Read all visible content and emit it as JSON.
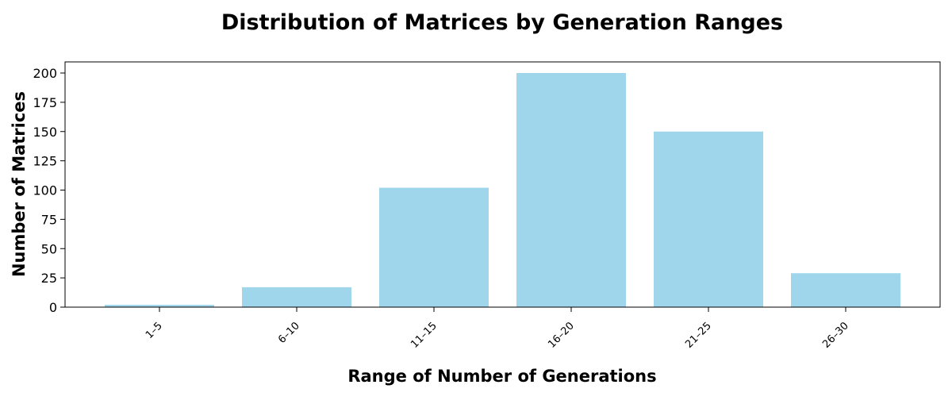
{
  "chart_data": {
    "type": "bar",
    "title": "Distribution of Matrices by Generation Ranges",
    "xlabel": "Range of Number of Generations",
    "ylabel": "Number of Matrices",
    "categories": [
      "1–5",
      "6–10",
      "11–15",
      "16–20",
      "21–25",
      "26–30"
    ],
    "values": [
      2,
      17,
      102,
      200,
      150,
      29
    ],
    "ylim": [
      0,
      210
    ],
    "yticks": [
      0,
      25,
      50,
      75,
      100,
      125,
      150,
      175,
      200
    ],
    "grid": false,
    "legend": "none",
    "bar_color": "#9fd6ec",
    "x_tick_rotation": 45
  }
}
